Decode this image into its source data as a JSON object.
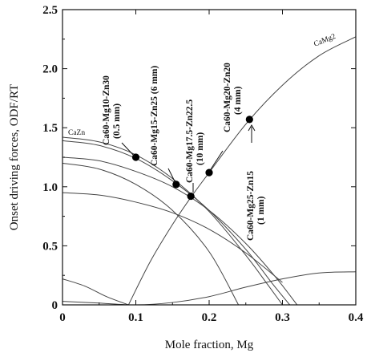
{
  "chart_data": {
    "type": "line",
    "title": "",
    "xlabel": "Mole fraction, Mg",
    "ylabel": "Onset driving forces, ODF/RT",
    "xlim": [
      0,
      0.4
    ],
    "ylim": [
      0,
      2.5
    ],
    "xticks": [
      0,
      0.1,
      0.2,
      0.3,
      0.4
    ],
    "xtick_labels": [
      "0",
      "0.1",
      "0.2",
      "0.3",
      "0.4"
    ],
    "yticks": [
      0,
      0.5,
      1.0,
      1.5,
      2.0,
      2.5
    ],
    "ytick_labels": [
      "0",
      "0.5",
      "1.0",
      "1.5",
      "2.0",
      "2.5"
    ],
    "grid": false,
    "curve_labels": [
      "CaZn",
      "CaMg2"
    ],
    "series": [
      {
        "name": "CaZn",
        "x": [
          0,
          0.05,
          0.1,
          0.15,
          0.2,
          0.25,
          0.28,
          0.3
        ],
        "y": [
          1.42,
          1.38,
          1.27,
          1.07,
          0.79,
          0.42,
          0.17,
          0.0
        ]
      },
      {
        "name": "",
        "x": [
          0,
          0.05,
          0.1,
          0.15,
          0.2,
          0.25,
          0.285,
          0.31
        ],
        "y": [
          1.39,
          1.35,
          1.24,
          1.05,
          0.8,
          0.47,
          0.19,
          0.0
        ]
      },
      {
        "name": "",
        "x": [
          0,
          0.05,
          0.1,
          0.15,
          0.2,
          0.25,
          0.29,
          0.32
        ],
        "y": [
          1.25,
          1.22,
          1.13,
          1.0,
          0.8,
          0.52,
          0.24,
          0.0
        ]
      },
      {
        "name": "",
        "x": [
          0,
          0.05,
          0.1,
          0.15,
          0.2,
          0.24
        ],
        "y": [
          1.2,
          1.15,
          1.02,
          0.8,
          0.45,
          0.0
        ]
      },
      {
        "name": "",
        "x": [
          0,
          0.05,
          0.1,
          0.15,
          0.2,
          0.25,
          0.3
        ],
        "y": [
          0.95,
          0.93,
          0.87,
          0.78,
          0.64,
          0.44,
          0.19
        ]
      },
      {
        "name": "CaMg2",
        "x": [
          0.09,
          0.12,
          0.15,
          0.175,
          0.2,
          0.25,
          0.3,
          0.35,
          0.4
        ],
        "y": [
          0.0,
          0.37,
          0.68,
          0.91,
          1.12,
          1.53,
          1.86,
          2.11,
          2.27
        ]
      },
      {
        "name": "",
        "x": [
          0,
          0.03,
          0.06,
          0.09
        ],
        "y": [
          0.22,
          0.16,
          0.07,
          0.0
        ]
      },
      {
        "name": "",
        "x": [
          0,
          0.05,
          0.1,
          0.15,
          0.2,
          0.25,
          0.3,
          0.35,
          0.4
        ],
        "y": [
          0.03,
          0.015,
          0.0,
          0.02,
          0.07,
          0.15,
          0.22,
          0.27,
          0.28
        ]
      }
    ],
    "points": [
      {
        "x": 0.1,
        "y": 1.25
      },
      {
        "x": 0.155,
        "y": 1.02
      },
      {
        "x": 0.175,
        "y": 0.92
      },
      {
        "x": 0.2,
        "y": 1.12
      },
      {
        "x": 0.255,
        "y": 1.57
      }
    ],
    "annotations": [
      {
        "lines": [
          "Ca60-Mg10-Zn30",
          "(0.5 mm)"
        ],
        "point": 0
      },
      {
        "lines": [
          "Ca60-Mg15-Zn25 (6 mm)"
        ],
        "point": 1
      },
      {
        "lines": [
          "Ca60-Mg17.5-Zn22.5",
          "(10 mm)"
        ],
        "point": 2
      },
      {
        "lines": [
          "Ca60-Mg20-Zn20",
          "(4 mm)"
        ],
        "point": 3
      },
      {
        "lines": [
          "Ca60-Mg25-Zn15",
          "(1 mm)"
        ],
        "point": 4
      }
    ]
  }
}
